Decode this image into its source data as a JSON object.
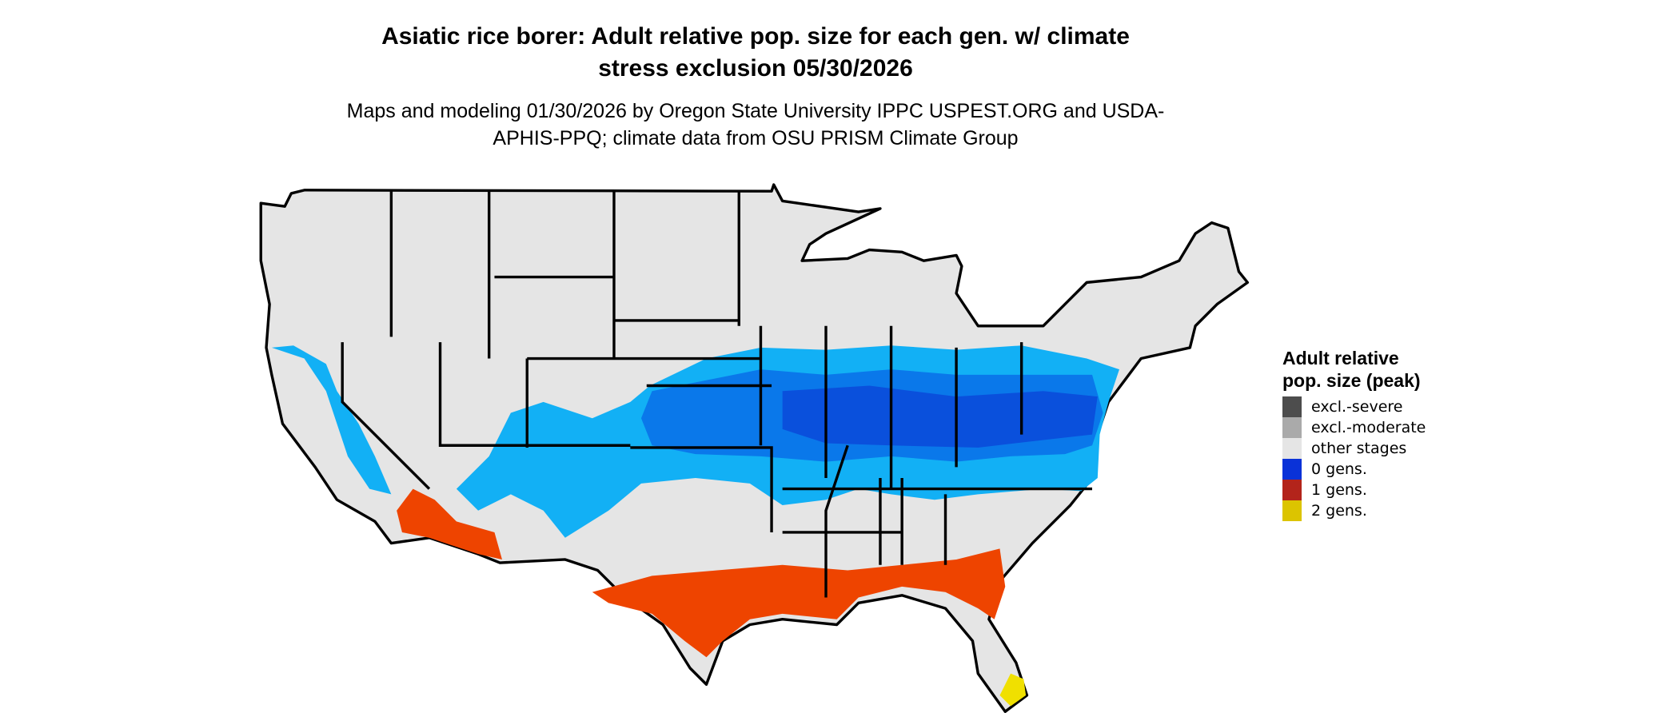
{
  "header": {
    "title": "Asiatic rice borer: Adult relative pop. size for each gen. w/ climate stress exclusion 05/30/2026",
    "subtitle": "Maps and modeling 01/30/2026 by Oregon State University IPPC USPEST.ORG and USDA-APHIS-PPQ; climate data from OSU PRISM Climate Group"
  },
  "legend": {
    "title": "Adult relative pop. size (peak)",
    "items": [
      {
        "label": "excl.-severe",
        "color": "#4d4d4d"
      },
      {
        "label": "excl.-moderate",
        "color": "#aaaaaa"
      },
      {
        "label": "other stages",
        "color": "#e5e5e5"
      },
      {
        "label": "0 gens.",
        "color": "#0a32d8"
      },
      {
        "label": "1 gens.",
        "color": "#b3241b"
      },
      {
        "label": "2 gens.",
        "color": "#dcc400"
      }
    ]
  }
}
